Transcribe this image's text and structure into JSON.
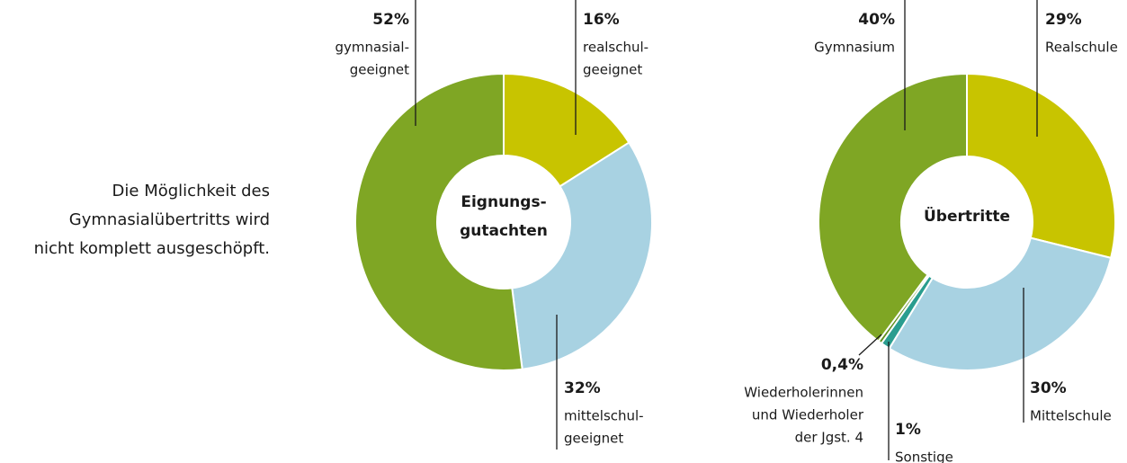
{
  "annotation": [
    "Die Möglichkeit des",
    "Gymnasialübertritts wird",
    "nicht komplett ausgeschöpft."
  ],
  "chart_data": [
    {
      "type": "donut",
      "center_label": [
        "Eignungs-",
        "gutachten"
      ],
      "categories": [
        [
          "realschul-",
          "geeignet"
        ],
        [
          "mittelschul-",
          "geeignet"
        ],
        [
          "gymnasial-",
          "geeignet"
        ]
      ],
      "values": [
        16,
        32,
        52
      ],
      "value_labels": [
        "16%",
        "32%",
        "52%"
      ],
      "colors": [
        "#c8c400",
        "#a8d2e2",
        "#7fa624"
      ]
    },
    {
      "type": "donut",
      "center_label": [
        "Übertritte"
      ],
      "categories": [
        [
          "Realschule"
        ],
        [
          "Mittelschule"
        ],
        [
          "Sonstige"
        ],
        [
          "Wiederholerinnen",
          "und Wiederholer",
          "der Jgst. 4"
        ],
        [
          "Gymnasium"
        ]
      ],
      "values": [
        29,
        30,
        1,
        0.4,
        40
      ],
      "value_labels": [
        "29%",
        "30%",
        "1%",
        "0,4%",
        "40%"
      ],
      "colors": [
        "#c8c400",
        "#a8d2e2",
        "#2a9d8f",
        "#5f8f1e",
        "#7fa624"
      ]
    }
  ]
}
